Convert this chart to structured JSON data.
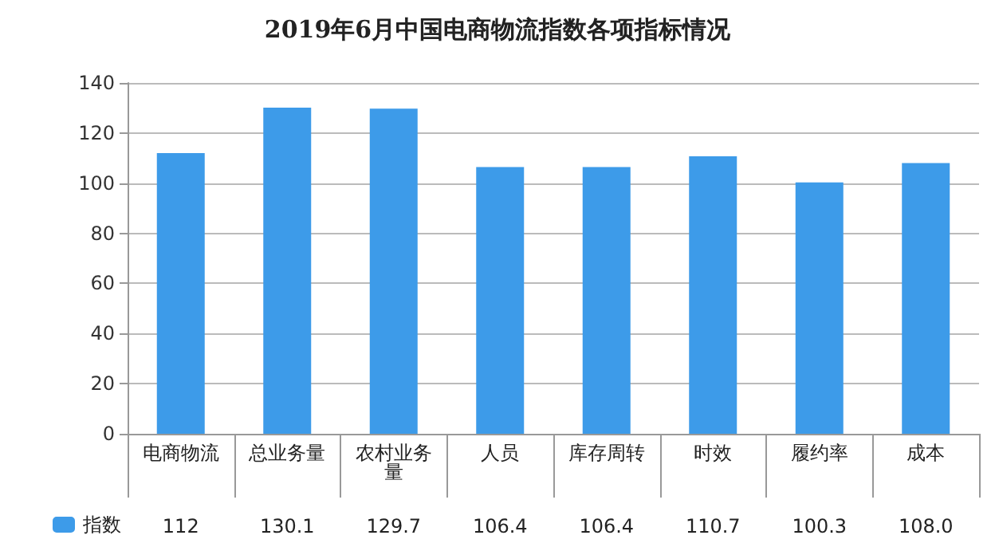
{
  "chart_data": {
    "type": "bar",
    "title": "2019年6月中国电商物流指数各项指标情况",
    "categories": [
      "电商物流",
      "总业务量",
      "农村业务量",
      "人员",
      "库存周转",
      "时效",
      "履约率",
      "成本"
    ],
    "series": [
      {
        "name": "指数",
        "color": "#3d9be9",
        "values": [
          112,
          130.1,
          129.7,
          106.4,
          106.4,
          110.7,
          100.3,
          108.0
        ],
        "value_labels": [
          "112",
          "130.1",
          "129.7",
          "106.4",
          "106.4",
          "110.7",
          "100.3",
          "108.0"
        ]
      }
    ],
    "ylim": [
      0,
      140
    ],
    "yticks": [
      0,
      20,
      40,
      60,
      80,
      100,
      120,
      140
    ],
    "grid": "y",
    "legend": "bottom left"
  }
}
